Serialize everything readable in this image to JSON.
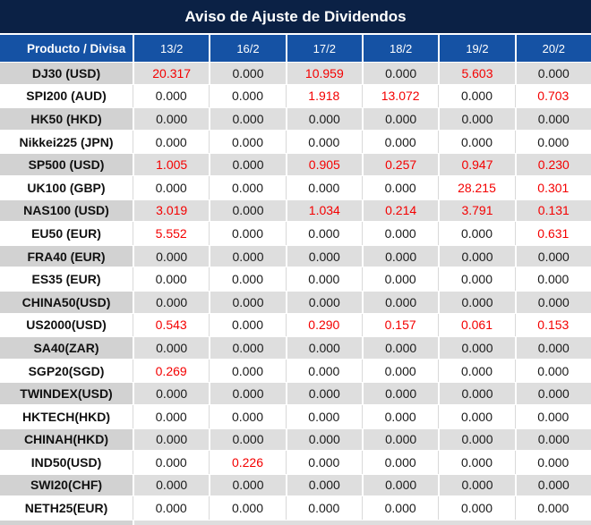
{
  "chart_data": {
    "type": "table",
    "title": "Aviso de Ajuste de Dividendos",
    "columns": [
      "Producto / Divisa",
      "13/2",
      "16/2",
      "17/2",
      "18/2",
      "19/2",
      "20/2"
    ],
    "highlight_rule": "non-zero values rendered in red",
    "rows": [
      {
        "product": "DJ30 (USD)",
        "values": [
          "20.317",
          "0.000",
          "10.959",
          "0.000",
          "5.603",
          "0.000"
        ]
      },
      {
        "product": "SPI200 (AUD)",
        "values": [
          "0.000",
          "0.000",
          "1.918",
          "13.072",
          "0.000",
          "0.703"
        ]
      },
      {
        "product": "HK50 (HKD)",
        "values": [
          "0.000",
          "0.000",
          "0.000",
          "0.000",
          "0.000",
          "0.000"
        ]
      },
      {
        "product": "Nikkei225 (JPN)",
        "values": [
          "0.000",
          "0.000",
          "0.000",
          "0.000",
          "0.000",
          "0.000"
        ]
      },
      {
        "product": "SP500 (USD)",
        "values": [
          "1.005",
          "0.000",
          "0.905",
          "0.257",
          "0.947",
          "0.230"
        ]
      },
      {
        "product": "UK100 (GBP)",
        "values": [
          "0.000",
          "0.000",
          "0.000",
          "0.000",
          "28.215",
          "0.301"
        ]
      },
      {
        "product": "NAS100 (USD)",
        "values": [
          "3.019",
          "0.000",
          "1.034",
          "0.214",
          "3.791",
          "0.131"
        ]
      },
      {
        "product": "EU50 (EUR)",
        "values": [
          "5.552",
          "0.000",
          "0.000",
          "0.000",
          "0.000",
          "0.631"
        ]
      },
      {
        "product": "FRA40 (EUR)",
        "values": [
          "0.000",
          "0.000",
          "0.000",
          "0.000",
          "0.000",
          "0.000"
        ]
      },
      {
        "product": "ES35 (EUR)",
        "values": [
          "0.000",
          "0.000",
          "0.000",
          "0.000",
          "0.000",
          "0.000"
        ]
      },
      {
        "product": "CHINA50(USD)",
        "values": [
          "0.000",
          "0.000",
          "0.000",
          "0.000",
          "0.000",
          "0.000"
        ]
      },
      {
        "product": "US2000(USD)",
        "values": [
          "0.543",
          "0.000",
          "0.290",
          "0.157",
          "0.061",
          "0.153"
        ]
      },
      {
        "product": "SA40(ZAR)",
        "values": [
          "0.000",
          "0.000",
          "0.000",
          "0.000",
          "0.000",
          "0.000"
        ]
      },
      {
        "product": "SGP20(SGD)",
        "values": [
          "0.269",
          "0.000",
          "0.000",
          "0.000",
          "0.000",
          "0.000"
        ]
      },
      {
        "product": "TWINDEX(USD)",
        "values": [
          "0.000",
          "0.000",
          "0.000",
          "0.000",
          "0.000",
          "0.000"
        ]
      },
      {
        "product": "HKTECH(HKD)",
        "values": [
          "0.000",
          "0.000",
          "0.000",
          "0.000",
          "0.000",
          "0.000"
        ]
      },
      {
        "product": "CHINAH(HKD)",
        "values": [
          "0.000",
          "0.000",
          "0.000",
          "0.000",
          "0.000",
          "0.000"
        ]
      },
      {
        "product": "IND50(USD)",
        "values": [
          "0.000",
          "0.226",
          "0.000",
          "0.000",
          "0.000",
          "0.000"
        ]
      },
      {
        "product": "SWI20(CHF)",
        "values": [
          "0.000",
          "0.000",
          "0.000",
          "0.000",
          "0.000",
          "0.000"
        ]
      },
      {
        "product": "NETH25(EUR)",
        "values": [
          "0.000",
          "0.000",
          "0.000",
          "0.000",
          "0.000",
          "0.000"
        ]
      }
    ]
  },
  "colors": {
    "title_bg": "#0B2145",
    "header_bg": "#1552A4",
    "row_gray_bg": "#DEDEDE",
    "row_gray_product_bg": "#D2D2D2",
    "row_white_divider": "#D9D9D9",
    "highlight_red": "#F40000",
    "value_color": "#1A1A1A"
  }
}
